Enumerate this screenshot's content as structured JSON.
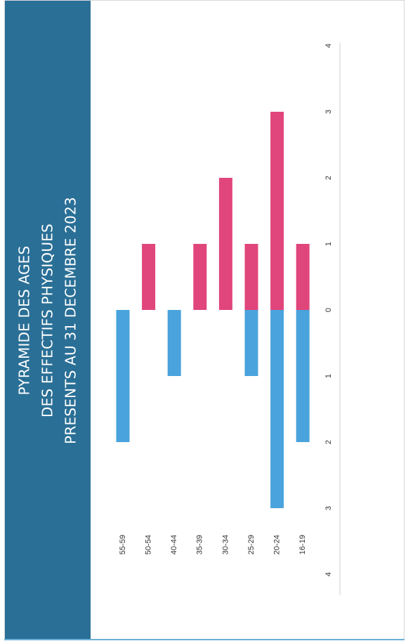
{
  "title_lines": [
    "PYRAMIDE DES AGES",
    "DES EFFECTIFS PHYSIQUES",
    "PRESENTS AU 31 DECEMBRE 2023"
  ],
  "colors": {
    "title_band": "#2a6f96",
    "men": "#4aa3dc",
    "women": "#e0457b"
  },
  "chart_data": {
    "type": "bar",
    "orientation": "pyramid",
    "categories": [
      "55-59",
      "50-54",
      "40-44",
      "35-39",
      "30-34",
      "25-29",
      "20-24",
      "16-19"
    ],
    "series": [
      {
        "values": [
          2,
          0,
          1,
          0,
          0,
          1,
          3,
          2
        ],
        "color": "#4aa3dc",
        "side": "left"
      },
      {
        "values": [
          0,
          1,
          0,
          1,
          2,
          1,
          3,
          1
        ],
        "color": "#e0457b",
        "side": "right"
      }
    ],
    "axis_range": [
      -4,
      4
    ],
    "tick_labels": [
      "4",
      "3",
      "2",
      "1",
      "0",
      "1",
      "2",
      "3",
      "4"
    ],
    "grid": false
  }
}
